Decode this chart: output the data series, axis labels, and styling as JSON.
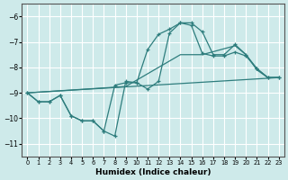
{
  "xlabel": "Humidex (Indice chaleur)",
  "bg_color": "#ceeaea",
  "grid_color": "#ffffff",
  "line_color": "#2e7d7d",
  "ylim": [
    -11.5,
    -5.5
  ],
  "xlim": [
    -0.5,
    23.5
  ],
  "yticks": [
    -11,
    -10,
    -9,
    -8,
    -7,
    -6
  ],
  "xticks": [
    0,
    1,
    2,
    3,
    4,
    5,
    6,
    7,
    8,
    9,
    10,
    11,
    12,
    13,
    14,
    15,
    16,
    17,
    18,
    19,
    20,
    21,
    22,
    23
  ],
  "line1_x": [
    0,
    1,
    2,
    3,
    4,
    5,
    6,
    7,
    8,
    9,
    10,
    11,
    12,
    13,
    14,
    15,
    16,
    17,
    18,
    19,
    20,
    21,
    22,
    23
  ],
  "line1_y": [
    -9.0,
    -9.35,
    -9.35,
    -9.1,
    -9.9,
    -10.1,
    -10.1,
    -10.5,
    -10.7,
    -8.55,
    -8.6,
    -8.85,
    -8.55,
    -6.65,
    -6.25,
    -6.25,
    -6.6,
    -7.5,
    -7.5,
    -7.1,
    -7.5,
    -8.05,
    -8.4,
    -8.4
  ],
  "line2_x": [
    0,
    1,
    2,
    3,
    4,
    5,
    6,
    7,
    8,
    9,
    10,
    11,
    12,
    13,
    14,
    15,
    16,
    17,
    18,
    19,
    20,
    21,
    22,
    23
  ],
  "line2_y": [
    -9.0,
    -9.35,
    -9.35,
    -9.1,
    -9.9,
    -10.1,
    -10.1,
    -10.5,
    -8.7,
    -8.6,
    -8.6,
    -7.3,
    -6.7,
    -6.5,
    -6.25,
    -6.35,
    -7.45,
    -7.55,
    -7.55,
    -7.4,
    -7.55,
    -8.05,
    -8.4,
    -8.4
  ],
  "line3_x": [
    0,
    9,
    14,
    16,
    19,
    20,
    21,
    22,
    23
  ],
  "line3_y": [
    -9.0,
    -8.75,
    -7.5,
    -7.5,
    -7.15,
    -7.5,
    -8.1,
    -8.4,
    -8.4
  ],
  "line4_x": [
    0,
    23
  ],
  "line4_y": [
    -9.0,
    -8.4
  ]
}
